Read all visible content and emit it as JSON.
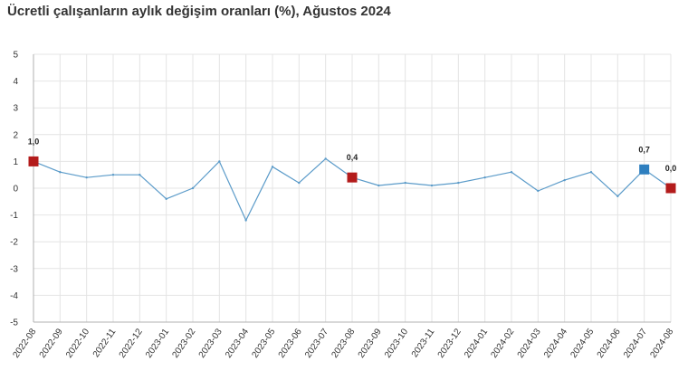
{
  "chart_data": {
    "type": "line",
    "title": "Ücretli çalışanların aylık değişim oranları (%), Ağustos 2024",
    "xlabel": "",
    "ylabel": "",
    "ylim": [
      -5,
      5
    ],
    "yticks": [
      "-5",
      "-4",
      "-3",
      "-2",
      "-1",
      "0",
      "1",
      "2",
      "3",
      "4",
      "5"
    ],
    "grid": true,
    "categories": [
      "2022-08",
      "2022-09",
      "2022-10",
      "2022-11",
      "2022-12",
      "2023-01",
      "2023-02",
      "2023-03",
      "2023-04",
      "2023-05",
      "2023-06",
      "2023-07",
      "2023-08",
      "2023-09",
      "2023-10",
      "2023-11",
      "2023-12",
      "2024-01",
      "2024-02",
      "2024-03",
      "2024-04",
      "2024-05",
      "2024-06",
      "2024-07",
      "2024-08"
    ],
    "series": [
      {
        "values": [
          1.0,
          0.6,
          0.4,
          0.5,
          0.5,
          -0.4,
          0.0,
          1.0,
          -1.2,
          0.8,
          0.2,
          1.1,
          0.4,
          0.1,
          0.2,
          0.1,
          0.2,
          0.4,
          0.6,
          -0.1,
          0.3,
          0.6,
          -0.3,
          0.7,
          0.0
        ]
      }
    ],
    "highlights": [
      {
        "index": 0,
        "label": "1,0",
        "color": "#b31b1b"
      },
      {
        "index": 12,
        "label": "0,4",
        "color": "#b31b1b"
      },
      {
        "index": 23,
        "label": "0,7",
        "color": "#2e7fbf"
      },
      {
        "index": 24,
        "label": "0,0",
        "color": "#b31b1b"
      }
    ],
    "colors": {
      "line": "#5b9bc9",
      "grid": "#e4e4e4",
      "axis": "#b0b0b0"
    }
  }
}
